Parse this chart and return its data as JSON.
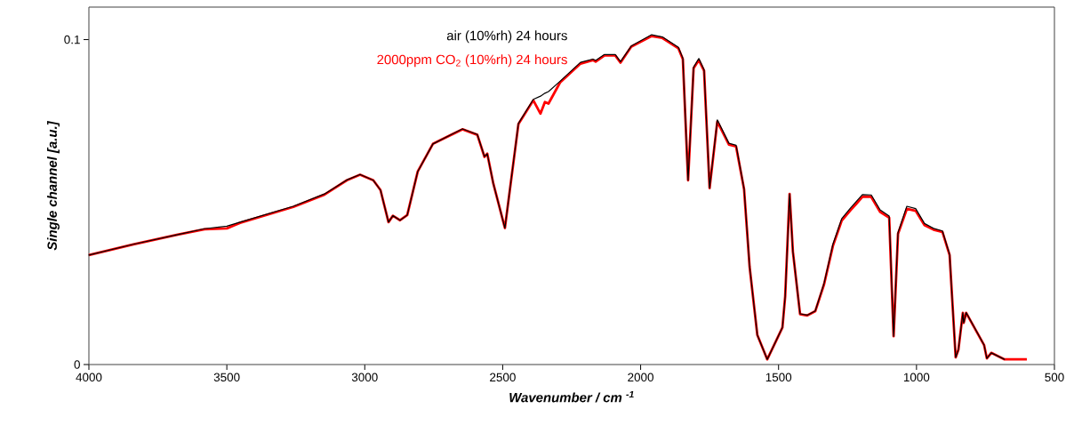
{
  "chart_data": {
    "type": "line",
    "xlabel": "Wavenumber / cm $^{-1}$",
    "ylabel": "Single channel [a.u.]",
    "xlim": [
      4000,
      500
    ],
    "ylim": [
      0,
      0.11
    ],
    "xticks": [
      4000,
      3500,
      3000,
      2500,
      2000,
      1500,
      1000,
      500
    ],
    "yticks": [
      0,
      0.1
    ],
    "grid": false,
    "legend": false,
    "line_style": "solid",
    "marker": "none",
    "x": [
      4000,
      3839,
      3678,
      3581,
      3500,
      3452,
      3259,
      3146,
      3065,
      3017,
      2969,
      2943,
      2914,
      2898,
      2872,
      2846,
      2808,
      2753,
      2646,
      2592,
      2566,
      2556,
      2534,
      2492,
      2443,
      2389,
      2363,
      2347,
      2334,
      2292,
      2218,
      2173,
      2163,
      2131,
      2092,
      2073,
      2034,
      1960,
      1921,
      1863,
      1847,
      1828,
      1808,
      1789,
      1770,
      1750,
      1722,
      1680,
      1654,
      1625,
      1605,
      1577,
      1541,
      1509,
      1486,
      1476,
      1460,
      1448,
      1422,
      1396,
      1367,
      1335,
      1303,
      1271,
      1239,
      1219,
      1196,
      1164,
      1132,
      1099,
      1083,
      1067,
      1035,
      1003,
      971,
      938,
      906,
      880,
      858,
      848,
      832,
      829,
      820,
      755,
      745,
      729,
      681,
      600
    ],
    "series": [
      {
        "name": "air (10%rh) 24 hours",
        "color": "#000000",
        "values": [
          0.0337,
          0.037,
          0.04,
          0.0418,
          0.0426,
          0.0438,
          0.0487,
          0.0525,
          0.0568,
          0.0585,
          0.0567,
          0.0537,
          0.0438,
          0.0458,
          0.0444,
          0.046,
          0.0594,
          0.0679,
          0.0725,
          0.0708,
          0.064,
          0.0649,
          0.0557,
          0.042,
          0.0742,
          0.0816,
          0.0826,
          0.0835,
          0.084,
          0.0872,
          0.093,
          0.094,
          0.0936,
          0.0954,
          0.0954,
          0.0932,
          0.098,
          0.1015,
          0.1008,
          0.0976,
          0.0943,
          0.0567,
          0.0915,
          0.0942,
          0.0907,
          0.0543,
          0.0753,
          0.0681,
          0.0675,
          0.0541,
          0.0302,
          0.0091,
          0.0016,
          0.0073,
          0.0114,
          0.021,
          0.0525,
          0.0347,
          0.0156,
          0.0152,
          0.0165,
          0.025,
          0.037,
          0.0449,
          0.0482,
          0.0501,
          0.0523,
          0.0522,
          0.0476,
          0.0457,
          0.0087,
          0.0406,
          0.0487,
          0.048,
          0.0434,
          0.0419,
          0.0411,
          0.0339,
          0.0022,
          0.0046,
          0.0159,
          0.0128,
          0.016,
          0.006,
          0.0019,
          0.0036,
          0.0016,
          null
        ]
      },
      {
        "name": "2000ppm CO$_{2}$ (10%rh) 24 hours",
        "color": "#ff0000",
        "values": [
          0.0337,
          0.037,
          0.04,
          0.0416,
          0.0419,
          0.0436,
          0.0485,
          0.0523,
          0.0567,
          0.0584,
          0.0567,
          0.0537,
          0.0438,
          0.0458,
          0.0444,
          0.046,
          0.0594,
          0.0679,
          0.0724,
          0.0707,
          0.0639,
          0.0649,
          0.0557,
          0.042,
          0.074,
          0.0813,
          0.0772,
          0.0808,
          0.0803,
          0.0868,
          0.0926,
          0.0937,
          0.0932,
          0.0951,
          0.0951,
          0.0929,
          0.0978,
          0.1011,
          0.1005,
          0.0973,
          0.094,
          0.0567,
          0.0912,
          0.0937,
          0.0904,
          0.0543,
          0.0748,
          0.0677,
          0.0671,
          0.0539,
          0.0301,
          0.0091,
          0.0016,
          0.0073,
          0.0114,
          0.021,
          0.0525,
          0.0347,
          0.0155,
          0.0151,
          0.0164,
          0.0247,
          0.0365,
          0.0443,
          0.0475,
          0.0494,
          0.0516,
          0.0516,
          0.047,
          0.0452,
          0.0087,
          0.0402,
          0.0479,
          0.0473,
          0.0429,
          0.0415,
          0.0408,
          0.0337,
          0.0022,
          0.0046,
          0.0159,
          0.0128,
          0.0159,
          0.006,
          0.0019,
          0.0036,
          0.0016,
          0.0016
        ]
      }
    ]
  }
}
